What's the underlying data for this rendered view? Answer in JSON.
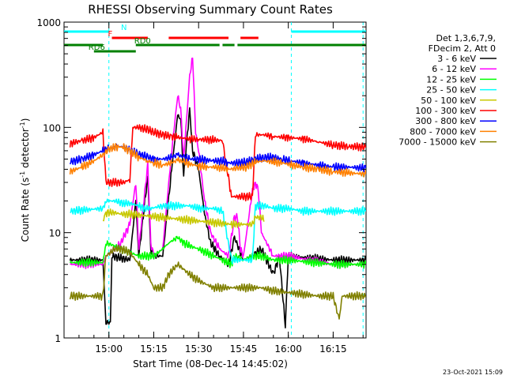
{
  "chart_data": {
    "type": "line",
    "title": "RHESSI Observing Summary Count Rates",
    "xlabel": "Start Time (08-Dec-14 14:45:02)",
    "ylabel_main": "Count Rate (s",
    "ylabel_sup1": "-1",
    "ylabel_mid": " detector",
    "ylabel_sup2": "-1",
    "ylabel_end": ")",
    "ylabel": "Count Rate (s^-1 detector^-1)",
    "y_scale": "log",
    "ylim": [
      1,
      1000
    ],
    "xlim": [
      "14:45:02",
      "16:25:00"
    ],
    "x_ticks": [
      "15:00",
      "15:15",
      "15:30",
      "15:45",
      "16:00",
      "16:15"
    ],
    "x_tick_minutes": [
      15,
      30,
      45,
      60,
      75,
      90
    ],
    "y_ticks": [
      "1",
      "10",
      "100",
      "1000"
    ],
    "y_tick_values": [
      1,
      10,
      100,
      1000
    ],
    "timestamp": "23-Oct-2021 15:09",
    "legend_header": [
      "Det 1,3,6,7,9,",
      "FDecim 2, Att 0"
    ],
    "legend_position": "right",
    "series": [
      {
        "name": "3 - 6 keV",
        "color": "#000000",
        "points": [
          [
            2,
            5.5
          ],
          [
            13,
            5.5
          ],
          [
            14,
            1.4
          ],
          [
            15.5,
            1.4
          ],
          [
            16,
            6
          ],
          [
            22,
            5.5
          ],
          [
            24,
            20
          ],
          [
            25,
            6
          ],
          [
            28,
            35
          ],
          [
            29,
            7
          ],
          [
            30,
            6
          ],
          [
            33,
            6
          ],
          [
            36,
            40
          ],
          [
            38,
            130
          ],
          [
            39,
            120
          ],
          [
            40,
            35
          ],
          [
            42,
            150
          ],
          [
            43,
            60
          ],
          [
            45,
            40
          ],
          [
            47,
            15
          ],
          [
            49,
            8
          ],
          [
            52,
            6
          ],
          [
            55,
            5
          ],
          [
            57,
            9
          ],
          [
            60,
            5.5
          ],
          [
            63,
            6
          ],
          [
            66,
            7
          ],
          [
            70,
            4
          ],
          [
            72,
            6
          ],
          [
            74,
            1.3
          ],
          [
            75,
            6
          ],
          [
            90,
            5.5
          ],
          [
            101,
            5.5
          ]
        ]
      },
      {
        "name": "6 - 12 keV",
        "color": "#ff00ff",
        "points": [
          [
            2,
            5
          ],
          [
            13,
            5
          ],
          [
            14,
            6
          ],
          [
            17,
            7
          ],
          [
            19,
            8
          ],
          [
            22,
            12
          ],
          [
            24,
            30
          ],
          [
            25,
            7
          ],
          [
            28,
            45
          ],
          [
            29,
            8
          ],
          [
            30,
            6
          ],
          [
            33,
            7
          ],
          [
            36,
            60
          ],
          [
            38,
            200
          ],
          [
            39,
            150
          ],
          [
            40,
            50
          ],
          [
            42,
            300
          ],
          [
            43,
            480
          ],
          [
            44,
            90
          ],
          [
            45,
            60
          ],
          [
            47,
            20
          ],
          [
            49,
            10
          ],
          [
            52,
            7
          ],
          [
            55,
            6
          ],
          [
            57,
            14
          ],
          [
            58,
            14
          ],
          [
            59,
            7
          ],
          [
            60,
            6
          ],
          [
            63,
            25
          ],
          [
            64,
            30
          ],
          [
            65,
            25
          ],
          [
            66,
            10
          ],
          [
            70,
            6
          ],
          [
            75,
            6
          ],
          [
            90,
            5
          ],
          [
            101,
            5
          ]
        ]
      },
      {
        "name": "12 - 25 keV",
        "color": "#00ff00",
        "points": [
          [
            2,
            5.2
          ],
          [
            13,
            5.2
          ],
          [
            14,
            8
          ],
          [
            17,
            7.5
          ],
          [
            19,
            7
          ],
          [
            22,
            6.5
          ],
          [
            25,
            6
          ],
          [
            30,
            6
          ],
          [
            33,
            7
          ],
          [
            35,
            8
          ],
          [
            38,
            9
          ],
          [
            40,
            8
          ],
          [
            42,
            7.5
          ],
          [
            45,
            7
          ],
          [
            50,
            6
          ],
          [
            53,
            5.5
          ],
          [
            56,
            5
          ],
          [
            57,
            6
          ],
          [
            60,
            5.5
          ],
          [
            63,
            6
          ],
          [
            66,
            6
          ],
          [
            70,
            5.5
          ],
          [
            75,
            5.5
          ],
          [
            90,
            5
          ],
          [
            101,
            5
          ]
        ]
      },
      {
        "name": "25 - 50 keV",
        "color": "#00ffff",
        "points": [
          [
            2,
            16
          ],
          [
            13,
            17
          ],
          [
            14,
            20
          ],
          [
            17,
            20
          ],
          [
            20,
            19
          ],
          [
            22,
            19
          ],
          [
            25,
            18
          ],
          [
            27,
            17
          ],
          [
            29,
            17
          ],
          [
            33,
            18
          ],
          [
            38,
            18
          ],
          [
            42,
            18
          ],
          [
            45,
            17
          ],
          [
            50,
            17
          ],
          [
            53,
            16
          ],
          [
            56,
            5.5
          ],
          [
            63,
            5.5
          ],
          [
            64,
            18
          ],
          [
            67,
            18
          ],
          [
            70,
            17
          ],
          [
            75,
            17
          ],
          [
            80,
            16
          ],
          [
            90,
            16
          ],
          [
            101,
            16
          ]
        ]
      },
      {
        "name": "50 - 100 keV",
        "color": "#c8c800",
        "points": [
          [
            13,
            13
          ],
          [
            14,
            15.5
          ],
          [
            17,
            15.5
          ],
          [
            19,
            15
          ],
          [
            22,
            15
          ],
          [
            56,
            12
          ],
          [
            63,
            12
          ],
          [
            64,
            14
          ],
          [
            66,
            14
          ],
          [
            67,
            13
          ]
        ]
      },
      {
        "name": "100 - 300 keV",
        "color": "#ff0000",
        "points": [
          [
            2,
            70
          ],
          [
            6,
            75
          ],
          [
            10,
            80
          ],
          [
            13,
            90
          ],
          [
            14,
            30
          ],
          [
            17,
            30
          ],
          [
            20,
            30
          ],
          [
            22,
            32
          ],
          [
            23,
            100
          ],
          [
            25,
            100
          ],
          [
            28,
            95
          ],
          [
            30,
            90
          ],
          [
            33,
            85
          ],
          [
            36,
            82
          ],
          [
            38,
            80
          ],
          [
            42,
            78
          ],
          [
            45,
            77
          ],
          [
            50,
            76
          ],
          [
            53,
            75
          ],
          [
            56,
            22
          ],
          [
            60,
            22
          ],
          [
            63,
            22
          ],
          [
            64,
            85
          ],
          [
            67,
            85
          ],
          [
            70,
            82
          ],
          [
            75,
            80
          ],
          [
            80,
            78
          ],
          [
            85,
            73
          ],
          [
            90,
            68
          ],
          [
            95,
            66
          ],
          [
            101,
            65
          ]
        ]
      },
      {
        "name": "300 - 800 keV",
        "color": "#0000ff",
        "points": [
          [
            2,
            47
          ],
          [
            6,
            50
          ],
          [
            10,
            55
          ],
          [
            13,
            60
          ],
          [
            15,
            63
          ],
          [
            18,
            66
          ],
          [
            20,
            65
          ],
          [
            22,
            60
          ],
          [
            25,
            56
          ],
          [
            28,
            52
          ],
          [
            30,
            50
          ],
          [
            33,
            50
          ],
          [
            36,
            52
          ],
          [
            38,
            55
          ],
          [
            40,
            52
          ],
          [
            42,
            50
          ],
          [
            45,
            50
          ],
          [
            48,
            49
          ],
          [
            50,
            48
          ],
          [
            53,
            48
          ],
          [
            55,
            46
          ],
          [
            58,
            46
          ],
          [
            61,
            47
          ],
          [
            64,
            50
          ],
          [
            67,
            52
          ],
          [
            70,
            52
          ],
          [
            73,
            50
          ],
          [
            76,
            48
          ],
          [
            80,
            46
          ],
          [
            85,
            44
          ],
          [
            90,
            42
          ],
          [
            95,
            42
          ],
          [
            101,
            41
          ]
        ]
      },
      {
        "name": "800 - 7000 keV",
        "color": "#ff8000",
        "points": [
          [
            2,
            38
          ],
          [
            6,
            42
          ],
          [
            10,
            48
          ],
          [
            13,
            55
          ],
          [
            15,
            62
          ],
          [
            18,
            66
          ],
          [
            20,
            64
          ],
          [
            22,
            60
          ],
          [
            25,
            52
          ],
          [
            28,
            48
          ],
          [
            30,
            46
          ],
          [
            33,
            44
          ],
          [
            36,
            46
          ],
          [
            38,
            49
          ],
          [
            40,
            47
          ],
          [
            42,
            45
          ],
          [
            45,
            43
          ],
          [
            48,
            42
          ],
          [
            50,
            42
          ],
          [
            53,
            41
          ],
          [
            55,
            40
          ],
          [
            58,
            41
          ],
          [
            61,
            42
          ],
          [
            64,
            47
          ],
          [
            67,
            48
          ],
          [
            70,
            47
          ],
          [
            73,
            46
          ],
          [
            76,
            44
          ],
          [
            80,
            42
          ],
          [
            85,
            40
          ],
          [
            90,
            38
          ],
          [
            95,
            37
          ],
          [
            101,
            36
          ]
        ]
      },
      {
        "name": "7000 - 15000 keV",
        "color": "#808000",
        "points": [
          [
            2,
            2.5
          ],
          [
            13,
            2.5
          ],
          [
            14,
            6
          ],
          [
            17,
            7
          ],
          [
            19,
            7
          ],
          [
            22,
            6.5
          ],
          [
            25,
            5
          ],
          [
            28,
            4
          ],
          [
            30,
            3
          ],
          [
            33,
            3
          ],
          [
            35,
            4
          ],
          [
            38,
            5
          ],
          [
            40,
            4.5
          ],
          [
            42,
            4
          ],
          [
            45,
            3.5
          ],
          [
            50,
            3
          ],
          [
            53,
            3
          ],
          [
            56,
            3
          ],
          [
            60,
            3
          ],
          [
            63,
            3
          ],
          [
            66,
            3
          ],
          [
            70,
            2.8
          ],
          [
            75,
            2.7
          ],
          [
            80,
            2.6
          ],
          [
            85,
            2.5
          ],
          [
            90,
            2.5
          ],
          [
            92,
            1.5
          ],
          [
            93,
            2.5
          ],
          [
            101,
            2.5
          ]
        ]
      }
    ],
    "state_bars": [
      {
        "label": "N",
        "color": "#00ffff",
        "segments": [
          [
            0,
            15
          ],
          [
            76,
            101
          ]
        ]
      },
      {
        "label": "F",
        "color": "#ff0000",
        "segments": [
          [
            16,
            28
          ],
          [
            35,
            55
          ],
          [
            59,
            65
          ]
        ]
      },
      {
        "label": "RD0",
        "color": "#008000",
        "segments": [
          [
            24,
            52
          ],
          [
            58,
            101
          ]
        ]
      },
      {
        "label": "",
        "color": "#008000",
        "segments": [
          [
            0,
            13
          ],
          [
            53,
            57
          ]
        ]
      },
      {
        "label": "RD6",
        "color": "#008000",
        "segments": [
          [
            10,
            24
          ]
        ]
      }
    ],
    "attenuator_markers_min": [
      15,
      76,
      100
    ]
  }
}
